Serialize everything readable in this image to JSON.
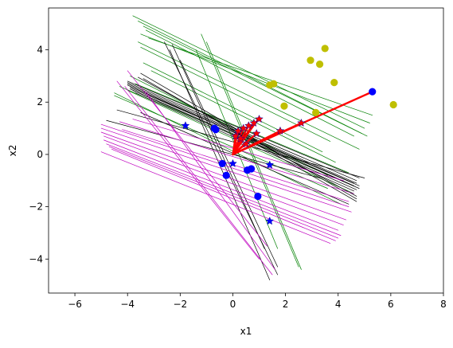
{
  "chart_data": {
    "type": "scatter",
    "title": "",
    "xlabel": "x1",
    "ylabel": "x2",
    "xlim": [
      -7,
      8
    ],
    "ylim": [
      -5.3,
      5.6
    ],
    "xticks": [
      -6,
      -4,
      -2,
      0,
      2,
      4,
      6,
      8
    ],
    "yticks": [
      -4,
      -2,
      0,
      2,
      4
    ],
    "grid": false,
    "legend": "none",
    "colors": {
      "green": "#008000",
      "black": "#000000",
      "magenta": "#bf00bf",
      "olive": "#bfbf00",
      "blue": "#0000ff",
      "red": "#ff0000"
    },
    "line_groups": [
      {
        "color": "green",
        "segments": [
          [
            [
              -3.8,
              5.3
            ],
            [
              5.0,
              1.0
            ]
          ],
          [
            [
              -3.6,
              5.1
            ],
            [
              5.1,
              0.7
            ]
          ],
          [
            [
              -3.4,
              4.9
            ],
            [
              4.9,
              0.8
            ]
          ],
          [
            [
              -3.3,
              4.75
            ],
            [
              4.6,
              0.7
            ]
          ],
          [
            [
              -3.5,
              4.6
            ],
            [
              5.2,
              1.2
            ]
          ],
          [
            [
              -3.2,
              4.45
            ],
            [
              5.3,
              1.5
            ]
          ],
          [
            [
              -3.6,
              4.3
            ],
            [
              4.8,
              0.2
            ]
          ],
          [
            [
              -3.5,
              4.1
            ],
            [
              3.7,
              0.5
            ]
          ],
          [
            [
              -3.4,
              3.5
            ],
            [
              3.4,
              0.1
            ]
          ],
          [
            [
              -3.1,
              3.2
            ],
            [
              3.9,
              -0.3
            ]
          ],
          [
            [
              -3.9,
              3.0
            ],
            [
              3.6,
              -0.8
            ]
          ],
          [
            [
              -3.7,
              2.7
            ],
            [
              4.4,
              -0.7
            ]
          ],
          [
            [
              -4.3,
              2.6
            ],
            [
              3.9,
              -0.9
            ]
          ],
          [
            [
              -4.0,
              2.45
            ],
            [
              4.6,
              -1.5
            ]
          ],
          [
            [
              -4.5,
              2.35
            ],
            [
              4.1,
              -1.9
            ]
          ],
          [
            [
              -4.5,
              2.25
            ],
            [
              3.6,
              -1.3
            ]
          ],
          [
            [
              -1.2,
              4.6
            ],
            [
              2.5,
              -4.3
            ]
          ],
          [
            [
              -1.0,
              4.3
            ],
            [
              2.6,
              -4.4
            ]
          ],
          [
            [
              -1.4,
              4.0
            ],
            [
              1.7,
              -3.6
            ]
          ]
        ]
      },
      {
        "color": "black",
        "segments": [
          [
            [
              -4.0,
              2.8
            ],
            [
              4.8,
              -0.9
            ]
          ],
          [
            [
              -4.0,
              2.75
            ],
            [
              4.7,
              -1.0
            ]
          ],
          [
            [
              -4.0,
              2.7
            ],
            [
              4.7,
              -1.1
            ]
          ],
          [
            [
              -4.0,
              2.65
            ],
            [
              4.6,
              -1.1
            ]
          ],
          [
            [
              -3.9,
              2.6
            ],
            [
              4.6,
              -1.2
            ]
          ],
          [
            [
              -3.9,
              2.55
            ],
            [
              4.8,
              -1.2
            ]
          ],
          [
            [
              -3.9,
              2.5
            ],
            [
              4.8,
              -1.3
            ]
          ],
          [
            [
              -3.8,
              2.45
            ],
            [
              4.7,
              -1.35
            ]
          ],
          [
            [
              -3.7,
              2.35
            ],
            [
              4.6,
              -1.4
            ]
          ],
          [
            [
              -3.6,
              2.95
            ],
            [
              4.7,
              -1.6
            ]
          ],
          [
            [
              -3.5,
              3.1
            ],
            [
              4.7,
              -1.7
            ]
          ],
          [
            [
              -3.4,
              2.9
            ],
            [
              4.7,
              -1.8
            ]
          ],
          [
            [
              -3.5,
              1.6
            ],
            [
              4.4,
              -1.9
            ]
          ],
          [
            [
              -4.8,
              1.3
            ],
            [
              3.3,
              -0.9
            ]
          ],
          [
            [
              -4.4,
              1.7
            ],
            [
              5.0,
              -0.9
            ]
          ],
          [
            [
              -2.6,
              4.3
            ],
            [
              1.7,
              -4.6
            ]
          ],
          [
            [
              -2.4,
              4.0
            ],
            [
              1.4,
              -4.8
            ]
          ],
          [
            [
              -2.3,
              4.2
            ],
            [
              1.2,
              -3.6
            ]
          ],
          [
            [
              -2.0,
              3.6
            ],
            [
              1.7,
              -4.3
            ]
          ]
        ]
      },
      {
        "color": "magenta",
        "segments": [
          [
            [
              -4.0,
              3.2
            ],
            [
              1.3,
              -3.5
            ]
          ],
          [
            [
              -4.1,
              2.6
            ],
            [
              1.5,
              -4.6
            ]
          ],
          [
            [
              -4.4,
              2.8
            ],
            [
              1.0,
              -4.0
            ]
          ],
          [
            [
              -3.3,
              2.4
            ],
            [
              1.6,
              -4.4
            ]
          ],
          [
            [
              -5.0,
              1.15
            ],
            [
              4.4,
              -2.0
            ]
          ],
          [
            [
              -5.0,
              1.0
            ],
            [
              4.5,
              -2.2
            ]
          ],
          [
            [
              -5.0,
              0.85
            ],
            [
              4.3,
              -2.5
            ]
          ],
          [
            [
              -4.9,
              0.7
            ],
            [
              4.2,
              -2.7
            ]
          ],
          [
            [
              -4.9,
              0.55
            ],
            [
              4.0,
              -2.9
            ]
          ],
          [
            [
              -4.8,
              0.4
            ],
            [
              4.1,
              -3.1
            ]
          ],
          [
            [
              -4.7,
              0.3
            ],
            [
              4.0,
              -3.2
            ]
          ],
          [
            [
              -4.6,
              0.2
            ],
            [
              3.9,
              -3.3
            ]
          ],
          [
            [
              -5.0,
              0.1
            ],
            [
              3.7,
              -3.4
            ]
          ],
          [
            [
              -4.3,
              1.25
            ],
            [
              4.6,
              -1.5
            ]
          ],
          [
            [
              -4.2,
              0.95
            ],
            [
              4.4,
              -1.8
            ]
          ],
          [
            [
              -3.8,
              1.35
            ],
            [
              4.2,
              -1.0
            ]
          ]
        ]
      },
      {
        "color": "red",
        "width": 2.2,
        "segments": [
          [
            [
              0,
              0
            ],
            [
              5.3,
              2.4
            ]
          ],
          [
            [
              0,
              0
            ],
            [
              5.2,
              2.35
            ]
          ],
          [
            [
              0,
              0
            ],
            [
              2.6,
              1.2
            ]
          ],
          [
            [
              0,
              0
            ],
            [
              1.8,
              0.9
            ]
          ],
          [
            [
              0,
              0
            ],
            [
              1.0,
              1.4
            ]
          ],
          [
            [
              0,
              0
            ],
            [
              0.8,
              1.2
            ]
          ],
          [
            [
              0,
              0
            ],
            [
              0.6,
              1.1
            ]
          ],
          [
            [
              0,
              0
            ],
            [
              0.4,
              1.0
            ]
          ],
          [
            [
              0,
              0
            ],
            [
              0.2,
              0.9
            ]
          ],
          [
            [
              0,
              0
            ],
            [
              0.1,
              0.7
            ]
          ],
          [
            [
              0,
              0
            ],
            [
              0.3,
              0.6
            ]
          ],
          [
            [
              0,
              0
            ],
            [
              0.9,
              0.8
            ]
          ],
          [
            [
              0,
              0
            ],
            [
              0.5,
              0.4
            ]
          ]
        ]
      }
    ],
    "point_groups": [
      {
        "color": "olive",
        "marker": "circle",
        "points": [
          [
            3.5,
            4.05
          ],
          [
            2.95,
            3.6
          ],
          [
            3.3,
            3.45
          ],
          [
            3.85,
            2.75
          ],
          [
            1.4,
            2.65
          ],
          [
            1.55,
            2.7
          ],
          [
            6.1,
            1.9
          ],
          [
            1.95,
            1.85
          ],
          [
            3.15,
            1.6
          ]
        ]
      },
      {
        "color": "blue",
        "marker": "circle",
        "points": [
          [
            -0.7,
            1.0
          ],
          [
            -0.65,
            0.95
          ],
          [
            -0.4,
            -0.35
          ],
          [
            -0.25,
            -0.8
          ],
          [
            0.55,
            -0.6
          ],
          [
            0.7,
            -0.55
          ],
          [
            0.95,
            -1.6
          ],
          [
            5.3,
            2.4
          ]
        ]
      },
      {
        "color": "blue",
        "marker": "star",
        "points": [
          [
            -1.8,
            1.1
          ],
          [
            0.0,
            -0.35
          ],
          [
            1.4,
            -0.4
          ],
          [
            1.4,
            -2.55
          ]
        ]
      },
      {
        "color": "red",
        "marker": "star",
        "points": [
          [
            0.1,
            0.7
          ],
          [
            0.2,
            0.9
          ],
          [
            0.4,
            1.0
          ],
          [
            0.6,
            1.1
          ],
          [
            0.8,
            1.2
          ],
          [
            1.0,
            1.35
          ],
          [
            0.3,
            0.6
          ],
          [
            0.5,
            0.4
          ],
          [
            0.9,
            0.8
          ],
          [
            1.8,
            0.9
          ],
          [
            2.6,
            1.2
          ]
        ]
      }
    ]
  }
}
